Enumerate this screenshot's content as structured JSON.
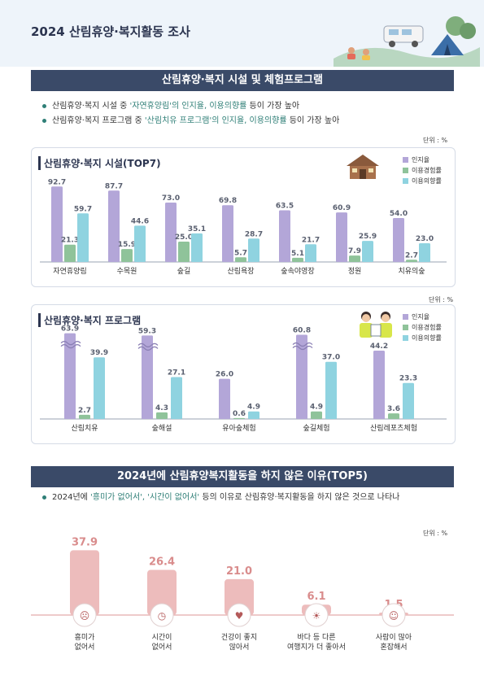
{
  "page_title": "2024 산림휴양·복지활동 조사",
  "section1": {
    "heading": "산림휴양·복지 시설 및 체험프로그램",
    "bullet1": {
      "pre": "산림휴양·복지 시설 중 ",
      "hl": "'자연휴양림'의 인지율, 이용의향률",
      "post": " 등이 가장 높아"
    },
    "bullet2": {
      "pre": "산림휴양·복지 프로그램 중 ",
      "hl": "'산림치유 프로그램'의 인지율, 이용의향률",
      "post": " 등이 가장 높아"
    }
  },
  "units": {
    "u1": "단위 : %",
    "u2": "단위 : %",
    "u3": "단위 : %"
  },
  "legend": {
    "awareness": "인지율",
    "experience": "이용경험률",
    "intention": "이용의향률"
  },
  "colors": {
    "awareness": "#b3a6d8",
    "experience": "#8fc39a",
    "intention": "#8fd3e0",
    "reason_bar": "#edbcbc",
    "reason_label": "#d98c8c",
    "navy": "#3a4a68",
    "teal": "#2f7f77"
  },
  "chart_data": [
    {
      "type": "bar",
      "title": "산림휴양·복지 시설(TOP7)",
      "categories": [
        "자연휴양림",
        "수목원",
        "숲길",
        "산림욕장",
        "숲속야영장",
        "정원",
        "치유의숲"
      ],
      "series": [
        {
          "name": "인지율",
          "values": [
            92.7,
            87.7,
            73.0,
            69.8,
            63.5,
            60.9,
            54.0
          ]
        },
        {
          "name": "이용경험률",
          "values": [
            21.3,
            15.9,
            25.0,
            5.7,
            5.1,
            7.9,
            2.7
          ]
        },
        {
          "name": "이용의향률",
          "values": [
            59.7,
            44.6,
            35.1,
            28.7,
            21.7,
            25.9,
            23.0
          ]
        }
      ],
      "labels": {
        "awareness": [
          "92.7",
          "87.7",
          "73.0",
          "69.8",
          "63.5",
          "60.9",
          "54.0"
        ],
        "experience": [
          "21.3",
          "15.9",
          "25.0",
          "5.7",
          "5.1",
          "7.9",
          "2.7"
        ],
        "intention": [
          "59.7",
          "44.6",
          "35.1",
          "28.7",
          "21.7",
          "25.9",
          "23.0"
        ]
      },
      "ylim": [
        0,
        100
      ],
      "legend_position": "top-right"
    },
    {
      "type": "bar",
      "title": "산림휴양·복지 프로그램",
      "categories": [
        "산림치유",
        "숲해설",
        "유아숲체험",
        "숲길체험",
        "산림레포츠체험"
      ],
      "series": [
        {
          "name": "인지율",
          "values": [
            63.9,
            59.3,
            26.0,
            60.8,
            44.2
          ]
        },
        {
          "name": "이용경험률",
          "values": [
            2.7,
            4.3,
            0.6,
            4.9,
            3.6
          ]
        },
        {
          "name": "이용의향률",
          "values": [
            39.9,
            27.1,
            4.9,
            37.0,
            23.3
          ]
        }
      ],
      "labels": {
        "awareness": [
          "63.9",
          "59.3",
          "26.0",
          "60.8",
          "44.2"
        ],
        "experience": [
          "2.7",
          "4.3",
          "0.6",
          "4.9",
          "3.6"
        ],
        "intention": [
          "39.9",
          "27.1",
          "4.9",
          "37.0",
          "23.3"
        ]
      },
      "axis_break": true,
      "legend_position": "top-right"
    },
    {
      "type": "bar",
      "title": "2024년에 산림휴양복지활동을 하지 않은 이유(TOP5)",
      "categories": [
        "흥미가 없어서",
        "시간이 없어서",
        "건강이 좋지 않아서",
        "바다 등 다른 여행지가 더 좋아서",
        "사람이 많아 혼잡해서"
      ],
      "category_lines": [
        [
          "흥미가",
          "없어서"
        ],
        [
          "시간이",
          "없어서"
        ],
        [
          "건강이 좋지",
          "않아서"
        ],
        [
          "바다 등 다른",
          "여행지가 더 좋아서"
        ],
        [
          "사람이 많아",
          "혼잡해서"
        ]
      ],
      "values": [
        37.9,
        26.4,
        21.0,
        6.1,
        1.5
      ],
      "value_labels": [
        "37.9",
        "26.4",
        "21.0",
        "6.1",
        "1.5"
      ],
      "icons": [
        "bored-person-icon",
        "clock-cross-icon",
        "masked-person-icon",
        "beach-island-icon",
        "crowd-icon"
      ]
    }
  ],
  "section3": {
    "heading": "2024년에 산림휴양복지활동을 하지 않은 이유(TOP5)",
    "bullet": {
      "pre": "2024년에 ",
      "hl": "'흥미가 없어서', '시간이 없어서'",
      "post": " 등의 이유로 산림휴양·복지활동을 하지 않은 것으로 나타나"
    }
  }
}
